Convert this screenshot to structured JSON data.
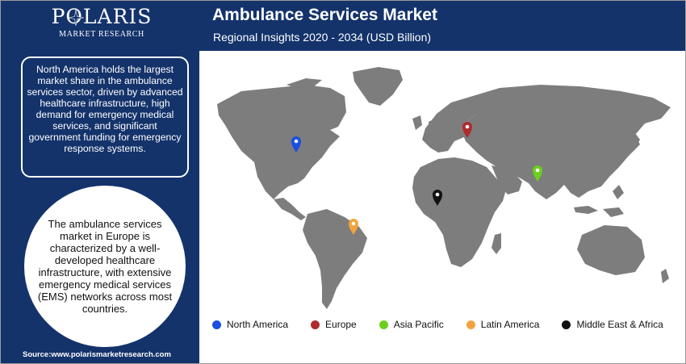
{
  "brand": {
    "name": "POLARIS",
    "subtitle": "MARKET RESEARCH"
  },
  "header": {
    "title": "Ambulance Services Market",
    "subtitle": "Regional Insights 2020 - 2034 (USD Billion)"
  },
  "insights": {
    "north_america": "North America holds the largest market share in the ambulance services sector, driven by advanced healthcare infrastructure, high demand for emergency medical services, and significant government funding for emergency response systems.",
    "europe": "The ambulance services market in Europe is characterized by a well-developed healthcare infrastructure, with extensive emergency medical services (EMS) networks across most countries."
  },
  "legend": [
    {
      "label": "North America",
      "color": "#1a4fe0"
    },
    {
      "label": "Europe",
      "color": "#b02a2e"
    },
    {
      "label": "Asia Pacific",
      "color": "#6ccf1c"
    },
    {
      "label": "Latin America",
      "color": "#f3a33e"
    },
    {
      "label": "Middle East & Africa",
      "color": "#111111"
    }
  ],
  "map": {
    "land_color": "#7d7d7d",
    "markers": [
      {
        "region": "North America",
        "color": "#1a4fe0",
        "icon": "map-pin-icon"
      },
      {
        "region": "Europe",
        "color": "#b02a2e",
        "icon": "map-pin-icon"
      },
      {
        "region": "Asia Pacific",
        "color": "#6ccf1c",
        "icon": "map-pin-icon"
      },
      {
        "region": "Latin America",
        "color": "#f3a33e",
        "icon": "map-pin-icon"
      },
      {
        "region": "Middle East & Africa",
        "color": "#111111",
        "icon": "map-pin-icon"
      }
    ]
  },
  "source": "Source:www.polarismarketresearch.com"
}
